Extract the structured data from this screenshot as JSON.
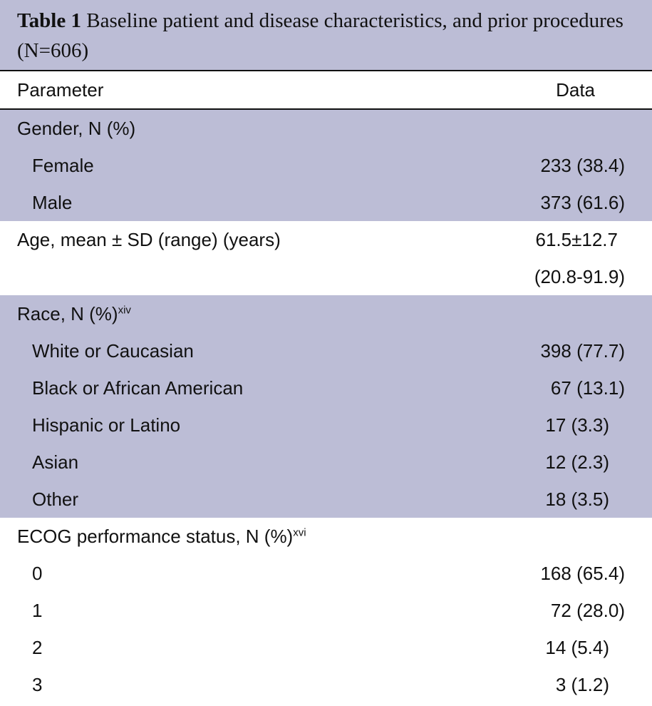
{
  "caption": {
    "prefix": "Table 1",
    "text": " Baseline patient and disease characteristics, and prior procedures (N=606)"
  },
  "header": {
    "parameter": "Parameter",
    "data": "Data"
  },
  "gender": {
    "label": "Gender, N (%)",
    "rows": [
      {
        "label": "Female",
        "value": "233 (38.4)"
      },
      {
        "label": "Male",
        "value": "373 (61.6)"
      }
    ]
  },
  "age": {
    "label": "Age, mean ± SD (range) (years)",
    "value_line1": "61.5±12.7",
    "value_line2": "(20.8-91.9)"
  },
  "race": {
    "label": "Race, N (%)",
    "sup": "xiv",
    "rows": [
      {
        "label": "White or Caucasian",
        "value": "398 (77.7)"
      },
      {
        "label": "Black or African American",
        "value": "67 (13.1)"
      },
      {
        "label": "Hispanic or Latino",
        "value": "17 (3.3)"
      },
      {
        "label": "Asian",
        "value": "12 (2.3)"
      },
      {
        "label": "Other",
        "value": "18 (3.5)"
      }
    ]
  },
  "ecog": {
    "label": "ECOG performance status, N (%)",
    "sup": "xvi",
    "rows": [
      {
        "label": "0",
        "value": "168 (65.4)"
      },
      {
        "label": "1",
        "value": "72 (28.0)"
      },
      {
        "label": "2",
        "value": "14 (5.4)"
      },
      {
        "label": "3",
        "value": "3 (1.2)"
      }
    ]
  }
}
